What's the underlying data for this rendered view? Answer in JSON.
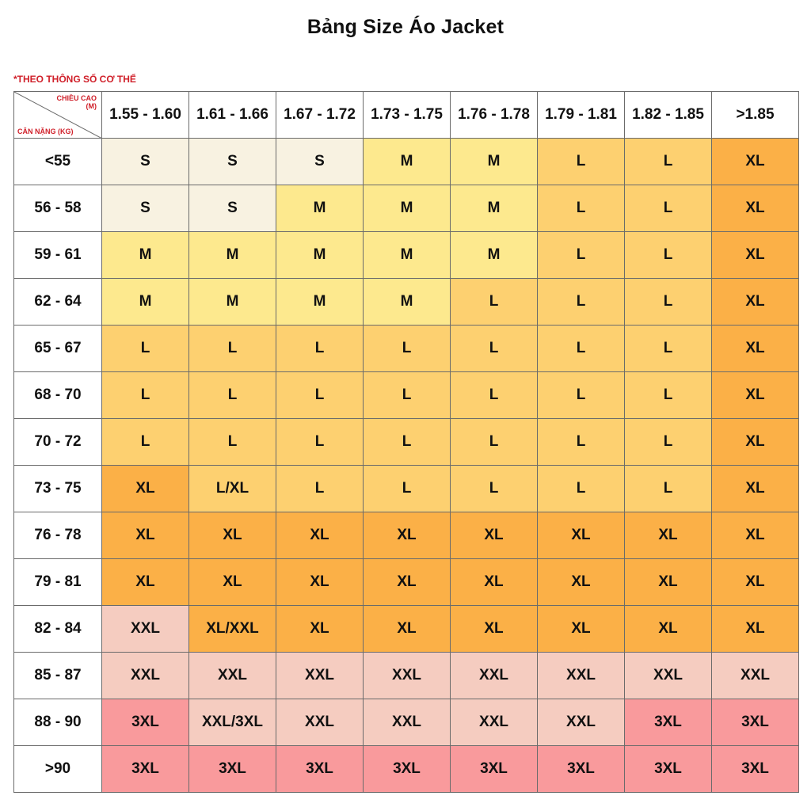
{
  "title": "Bảng Size Áo Jacket",
  "note": "*THEO THÔNG SỐ CƠ THỂ",
  "corner": {
    "height_label": "CHIỀU CAO",
    "height_unit": "(M)",
    "weight_label": "CÂN NẶNG (KG)"
  },
  "colors": {
    "S": "#f8f2e1",
    "M": "#fde98e",
    "L": "#fdd070",
    "XL": "#fbb047",
    "XXL": "#f5ccc0",
    "3XL": "#f99a9c",
    "note_red": "#d0202a"
  },
  "heights": [
    "1.55 - 1.60",
    "1.61 - 1.66",
    "1.67 - 1.72",
    "1.73 - 1.75",
    "1.76 - 1.78",
    "1.79 - 1.81",
    "1.82 - 1.85",
    ">1.85"
  ],
  "rows": [
    {
      "weight": "<55",
      "sizes": [
        "S",
        "S",
        "S",
        "M",
        "M",
        "L",
        "L",
        "XL"
      ]
    },
    {
      "weight": "56 - 58",
      "sizes": [
        "S",
        "S",
        "M",
        "M",
        "M",
        "L",
        "L",
        "XL"
      ]
    },
    {
      "weight": "59 - 61",
      "sizes": [
        "M",
        "M",
        "M",
        "M",
        "M",
        "L",
        "L",
        "XL"
      ]
    },
    {
      "weight": "62 - 64",
      "sizes": [
        "M",
        "M",
        "M",
        "M",
        "L",
        "L",
        "L",
        "XL"
      ]
    },
    {
      "weight": "65 - 67",
      "sizes": [
        "L",
        "L",
        "L",
        "L",
        "L",
        "L",
        "L",
        "XL"
      ]
    },
    {
      "weight": "68 - 70",
      "sizes": [
        "L",
        "L",
        "L",
        "L",
        "L",
        "L",
        "L",
        "XL"
      ]
    },
    {
      "weight": "70 - 72",
      "sizes": [
        "L",
        "L",
        "L",
        "L",
        "L",
        "L",
        "L",
        "XL"
      ]
    },
    {
      "weight": "73 - 75",
      "sizes": [
        "XL",
        "L/XL",
        "L",
        "L",
        "L",
        "L",
        "L",
        "XL"
      ]
    },
    {
      "weight": "76 - 78",
      "sizes": [
        "XL",
        "XL",
        "XL",
        "XL",
        "XL",
        "XL",
        "XL",
        "XL"
      ]
    },
    {
      "weight": "79 - 81",
      "sizes": [
        "XL",
        "XL",
        "XL",
        "XL",
        "XL",
        "XL",
        "XL",
        "XL"
      ]
    },
    {
      "weight": "82 - 84",
      "sizes": [
        "XXL",
        "XL/XXL",
        "XL",
        "XL",
        "XL",
        "XL",
        "XL",
        "XL"
      ]
    },
    {
      "weight": "85 - 87",
      "sizes": [
        "XXL",
        "XXL",
        "XXL",
        "XXL",
        "XXL",
        "XXL",
        "XXL",
        "XXL"
      ]
    },
    {
      "weight": "88 - 90",
      "sizes": [
        "3XL",
        "XXL/3XL",
        "XXL",
        "XXL",
        "XXL",
        "XXL",
        "3XL",
        "3XL"
      ]
    },
    {
      "weight": ">90",
      "sizes": [
        "3XL",
        "3XL",
        "3XL",
        "3XL",
        "3XL",
        "3XL",
        "3XL",
        "3XL"
      ]
    }
  ]
}
